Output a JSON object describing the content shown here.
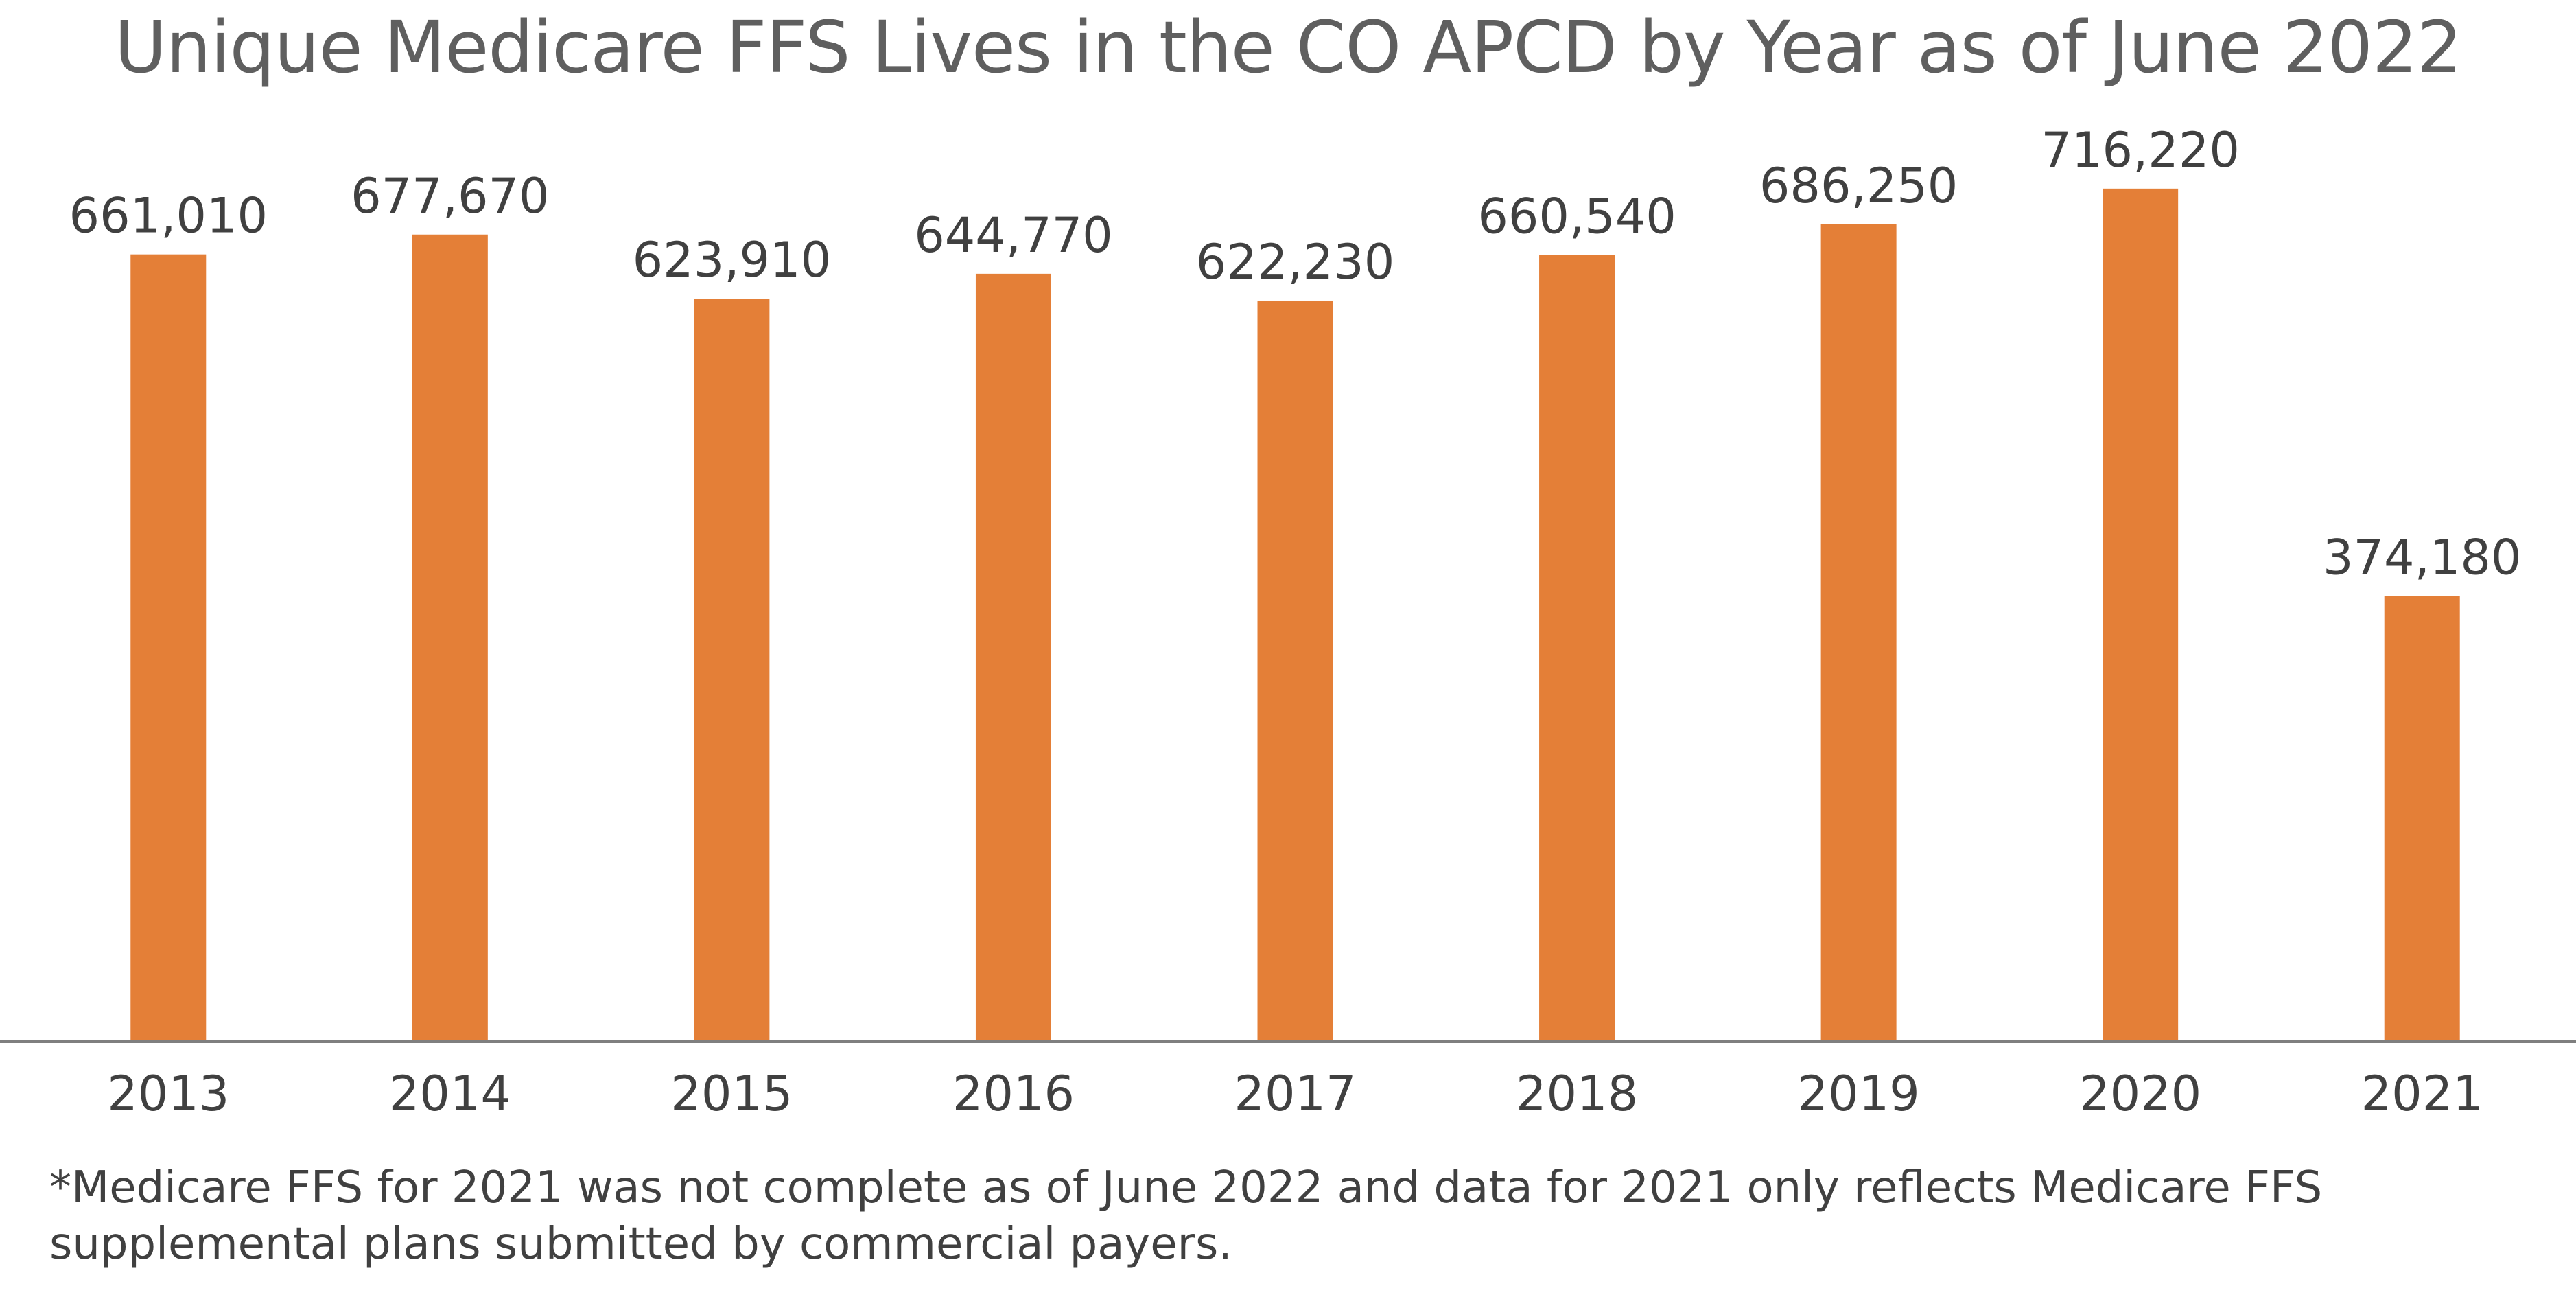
{
  "chart_data": {
    "type": "bar",
    "title": "Unique Medicare FFS Lives in the CO APCD by Year as of June 2022",
    "categories": [
      "2013",
      "2014",
      "2015",
      "2016",
      "2017",
      "2018",
      "2019",
      "2020",
      "2021"
    ],
    "values": [
      661010,
      677670,
      623910,
      644770,
      622230,
      660540,
      686250,
      716220,
      374180
    ],
    "value_labels": [
      "661,010",
      "677,670",
      "623,910",
      "644,770",
      "622,230",
      "660,540",
      "686,250",
      "716,220",
      "374,180"
    ],
    "xlabel": "",
    "ylabel": "",
    "ylim": [
      0,
      840000
    ],
    "grid": false,
    "legend": "none",
    "bar_color": "#E47F37",
    "axis_color": "#7f7f7f",
    "label_color": "#404040",
    "note": "*Medicare FFS for 2021 was not complete as of June 2022 and data for 2021 only reflects Medicare FFS supplemental plans submitted by commercial payers."
  }
}
